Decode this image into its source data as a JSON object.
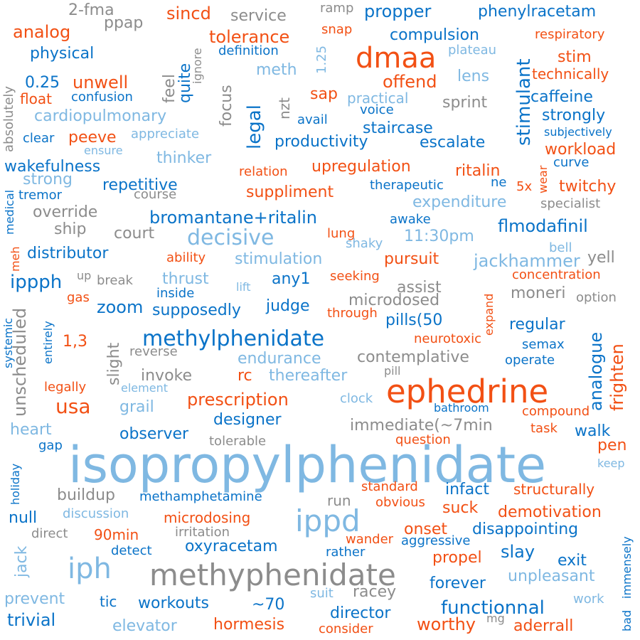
{
  "palette": {
    "dark_blue": "#0a73c8",
    "orange": "#f25014",
    "light_blue": "#7fb8e2",
    "gray": "#8c8c8c",
    "background": "#ffffff"
  },
  "words": [
    {
      "text": "isopropylphenidate",
      "color": "light_blue"
    },
    {
      "text": "methyphenidate",
      "color": "gray"
    },
    {
      "text": "ephedrine",
      "color": "orange"
    },
    {
      "text": "methylphenidate",
      "color": "dark_blue"
    },
    {
      "text": "dmaa",
      "color": "orange"
    },
    {
      "text": "ippd",
      "color": "light_blue"
    },
    {
      "text": "iph",
      "color": "light_blue"
    },
    {
      "text": "decisive",
      "color": "light_blue"
    },
    {
      "text": "legal",
      "color": "dark_blue"
    },
    {
      "text": "stimulant",
      "color": "dark_blue"
    },
    {
      "text": "usa",
      "color": "orange"
    },
    {
      "text": "prescription",
      "color": "orange"
    },
    {
      "text": "bromantane+ritalin",
      "color": "dark_blue"
    },
    {
      "text": "flmodafinil",
      "color": "dark_blue"
    },
    {
      "text": "functionnal",
      "color": "dark_blue"
    },
    {
      "text": "unscheduled",
      "color": "gray"
    },
    {
      "text": "analogue",
      "color": "dark_blue"
    },
    {
      "text": "frighten",
      "color": "orange"
    },
    {
      "text": "jackhammer",
      "color": "light_blue"
    },
    {
      "text": "propper",
      "color": "dark_blue"
    },
    {
      "text": "phenylracetam",
      "color": "dark_blue"
    },
    {
      "text": "sincd",
      "color": "orange"
    },
    {
      "text": "service",
      "color": "gray"
    },
    {
      "text": "2-fma",
      "color": "gray"
    },
    {
      "text": "ramp",
      "color": "gray"
    },
    {
      "text": "analog",
      "color": "orange"
    },
    {
      "text": "ppap",
      "color": "gray"
    },
    {
      "text": "tolerance",
      "color": "orange"
    },
    {
      "text": "compulsion",
      "color": "dark_blue"
    },
    {
      "text": "respiratory",
      "color": "orange"
    },
    {
      "text": "snap",
      "color": "orange"
    },
    {
      "text": "physical",
      "color": "dark_blue"
    },
    {
      "text": "definition",
      "color": "dark_blue"
    },
    {
      "text": "plateau",
      "color": "light_blue"
    },
    {
      "text": "1.25",
      "color": "light_blue"
    },
    {
      "text": "stim",
      "color": "orange"
    },
    {
      "text": "meth",
      "color": "light_blue"
    },
    {
      "text": "lens",
      "color": "light_blue"
    },
    {
      "text": "technically",
      "color": "orange"
    },
    {
      "text": "0.25",
      "color": "dark_blue"
    },
    {
      "text": "unwell",
      "color": "orange"
    },
    {
      "text": "offend",
      "color": "orange"
    },
    {
      "text": "quite",
      "color": "dark_blue"
    },
    {
      "text": "feel",
      "color": "gray"
    },
    {
      "text": "ignore",
      "color": "gray"
    },
    {
      "text": "focus",
      "color": "gray"
    },
    {
      "text": "float",
      "color": "orange"
    },
    {
      "text": "confusion",
      "color": "dark_blue"
    },
    {
      "text": "sap",
      "color": "orange"
    },
    {
      "text": "practical",
      "color": "light_blue"
    },
    {
      "text": "caffeine",
      "color": "dark_blue"
    },
    {
      "text": "absolutely",
      "color": "gray"
    },
    {
      "text": "cardiopulmonary",
      "color": "light_blue"
    },
    {
      "text": "nzt",
      "color": "gray"
    },
    {
      "text": "sprint",
      "color": "gray"
    },
    {
      "text": "voice",
      "color": "dark_blue"
    },
    {
      "text": "avail",
      "color": "dark_blue"
    },
    {
      "text": "strongly",
      "color": "dark_blue"
    },
    {
      "text": "staircase",
      "color": "dark_blue"
    },
    {
      "text": "clear",
      "color": "dark_blue"
    },
    {
      "text": "peeve",
      "color": "orange"
    },
    {
      "text": "appreciate",
      "color": "light_blue"
    },
    {
      "text": "subjectively",
      "color": "dark_blue"
    },
    {
      "text": "productivity",
      "color": "dark_blue"
    },
    {
      "text": "escalate",
      "color": "dark_blue"
    },
    {
      "text": "ensure",
      "color": "light_blue"
    },
    {
      "text": "workload",
      "color": "orange"
    },
    {
      "text": "thinker",
      "color": "light_blue"
    },
    {
      "text": "curve",
      "color": "dark_blue"
    },
    {
      "text": "wakefulness",
      "color": "dark_blue"
    },
    {
      "text": "upregulation",
      "color": "orange"
    },
    {
      "text": "ritalin",
      "color": "orange"
    },
    {
      "text": "relation",
      "color": "orange"
    },
    {
      "text": "strong",
      "color": "light_blue"
    },
    {
      "text": "wear",
      "color": "orange"
    },
    {
      "text": "medical",
      "color": "dark_blue"
    },
    {
      "text": "repetitive",
      "color": "dark_blue"
    },
    {
      "text": "therapeutic",
      "color": "dark_blue"
    },
    {
      "text": "ne",
      "color": "dark_blue"
    },
    {
      "text": "5x",
      "color": "orange"
    },
    {
      "text": "twitchy",
      "color": "orange"
    },
    {
      "text": "tremor",
      "color": "dark_blue"
    },
    {
      "text": "course",
      "color": "gray"
    },
    {
      "text": "suppliment",
      "color": "orange"
    },
    {
      "text": "expenditure",
      "color": "light_blue"
    },
    {
      "text": "specialist",
      "color": "gray"
    },
    {
      "text": "override",
      "color": "gray"
    },
    {
      "text": "ship",
      "color": "gray"
    },
    {
      "text": "court",
      "color": "gray"
    },
    {
      "text": "awake",
      "color": "dark_blue"
    },
    {
      "text": "lung",
      "color": "orange"
    },
    {
      "text": "shaky",
      "color": "light_blue"
    },
    {
      "text": "11:30pm",
      "color": "light_blue"
    },
    {
      "text": "meh",
      "color": "orange"
    },
    {
      "text": "distributor",
      "color": "dark_blue"
    },
    {
      "text": "ability",
      "color": "orange"
    },
    {
      "text": "stimulation",
      "color": "light_blue"
    },
    {
      "text": "pursuit",
      "color": "orange"
    },
    {
      "text": "bell",
      "color": "light_blue"
    },
    {
      "text": "yell",
      "color": "gray"
    },
    {
      "text": "ippph",
      "color": "dark_blue"
    },
    {
      "text": "up",
      "color": "gray"
    },
    {
      "text": "break",
      "color": "gray"
    },
    {
      "text": "thrust",
      "color": "light_blue"
    },
    {
      "text": "lift",
      "color": "light_blue"
    },
    {
      "text": "any1",
      "color": "dark_blue"
    },
    {
      "text": "seeking",
      "color": "orange"
    },
    {
      "text": "assist",
      "color": "gray"
    },
    {
      "text": "concentration",
      "color": "orange"
    },
    {
      "text": "gas",
      "color": "orange"
    },
    {
      "text": "inside",
      "color": "dark_blue"
    },
    {
      "text": "microdosed",
      "color": "gray"
    },
    {
      "text": "moneri",
      "color": "gray"
    },
    {
      "text": "option",
      "color": "gray"
    },
    {
      "text": "zoom",
      "color": "dark_blue"
    },
    {
      "text": "supposedly",
      "color": "dark_blue"
    },
    {
      "text": "judge",
      "color": "dark_blue"
    },
    {
      "text": "through",
      "color": "orange"
    },
    {
      "text": "pills(50",
      "color": "dark_blue"
    },
    {
      "text": "expand",
      "color": "orange"
    },
    {
      "text": "systemic",
      "color": "dark_blue"
    },
    {
      "text": "entirely",
      "color": "dark_blue"
    },
    {
      "text": "regular",
      "color": "dark_blue"
    },
    {
      "text": "slight",
      "color": "gray"
    },
    {
      "text": "1,3",
      "color": "orange"
    },
    {
      "text": "neurotoxic",
      "color": "orange"
    },
    {
      "text": "semax",
      "color": "dark_blue"
    },
    {
      "text": "reverse",
      "color": "gray"
    },
    {
      "text": "endurance",
      "color": "light_blue"
    },
    {
      "text": "contemplative",
      "color": "gray"
    },
    {
      "text": "operate",
      "color": "dark_blue"
    },
    {
      "text": "invoke",
      "color": "gray"
    },
    {
      "text": "rc",
      "color": "orange"
    },
    {
      "text": "thereafter",
      "color": "light_blue"
    },
    {
      "text": "pill",
      "color": "gray"
    },
    {
      "text": "legally",
      "color": "orange"
    },
    {
      "text": "element",
      "color": "light_blue"
    },
    {
      "text": "clock",
      "color": "light_blue"
    },
    {
      "text": "bathroom",
      "color": "dark_blue"
    },
    {
      "text": "compound",
      "color": "orange"
    },
    {
      "text": "grail",
      "color": "light_blue"
    },
    {
      "text": "designer",
      "color": "dark_blue"
    },
    {
      "text": "immediate(~7min",
      "color": "gray"
    },
    {
      "text": "task",
      "color": "orange"
    },
    {
      "text": "walk",
      "color": "dark_blue"
    },
    {
      "text": "heart",
      "color": "light_blue"
    },
    {
      "text": "observer",
      "color": "dark_blue"
    },
    {
      "text": "tolerable",
      "color": "gray"
    },
    {
      "text": "question",
      "color": "orange"
    },
    {
      "text": "gap",
      "color": "dark_blue"
    },
    {
      "text": "pen",
      "color": "orange"
    },
    {
      "text": "keep",
      "color": "light_blue"
    },
    {
      "text": "holiday",
      "color": "dark_blue"
    },
    {
      "text": "standard",
      "color": "orange"
    },
    {
      "text": "infact",
      "color": "dark_blue"
    },
    {
      "text": "structurally",
      "color": "orange"
    },
    {
      "text": "buildup",
      "color": "gray"
    },
    {
      "text": "methamphetamine",
      "color": "dark_blue"
    },
    {
      "text": "run",
      "color": "gray"
    },
    {
      "text": "obvious",
      "color": "orange"
    },
    {
      "text": "suck",
      "color": "orange"
    },
    {
      "text": "demotivation",
      "color": "orange"
    },
    {
      "text": "null",
      "color": "dark_blue"
    },
    {
      "text": "discussion",
      "color": "light_blue"
    },
    {
      "text": "microdosing",
      "color": "orange"
    },
    {
      "text": "onset",
      "color": "orange"
    },
    {
      "text": "disappointing",
      "color": "dark_blue"
    },
    {
      "text": "immensely",
      "color": "dark_blue"
    },
    {
      "text": "direct",
      "color": "gray"
    },
    {
      "text": "90min",
      "color": "orange"
    },
    {
      "text": "irritation",
      "color": "gray"
    },
    {
      "text": "wander",
      "color": "orange"
    },
    {
      "text": "aggressive",
      "color": "dark_blue"
    },
    {
      "text": "jack",
      "color": "light_blue"
    },
    {
      "text": "detect",
      "color": "dark_blue"
    },
    {
      "text": "oxyracetam",
      "color": "dark_blue"
    },
    {
      "text": "rather",
      "color": "dark_blue"
    },
    {
      "text": "slay",
      "color": "dark_blue"
    },
    {
      "text": "propel",
      "color": "orange"
    },
    {
      "text": "exit",
      "color": "dark_blue"
    },
    {
      "text": "unpleasant",
      "color": "light_blue"
    },
    {
      "text": "forever",
      "color": "dark_blue"
    },
    {
      "text": "prevent",
      "color": "light_blue"
    },
    {
      "text": "tic",
      "color": "dark_blue"
    },
    {
      "text": "workouts",
      "color": "dark_blue"
    },
    {
      "text": "~70",
      "color": "dark_blue"
    },
    {
      "text": "suit",
      "color": "light_blue"
    },
    {
      "text": "racey",
      "color": "gray"
    },
    {
      "text": "work",
      "color": "light_blue"
    },
    {
      "text": "bad",
      "color": "dark_blue"
    },
    {
      "text": "trivial",
      "color": "dark_blue"
    },
    {
      "text": "elevator",
      "color": "light_blue"
    },
    {
      "text": "hormesis",
      "color": "orange"
    },
    {
      "text": "director",
      "color": "dark_blue"
    },
    {
      "text": "consider",
      "color": "orange"
    },
    {
      "text": "worthy",
      "color": "orange"
    },
    {
      "text": "mg",
      "color": "gray"
    },
    {
      "text": "aderrall",
      "color": "orange"
    }
  ]
}
